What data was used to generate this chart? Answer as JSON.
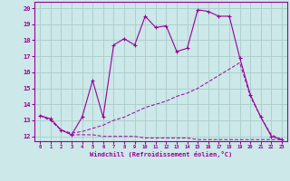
{
  "xlabel": "Windchill (Refroidissement éolien,°C)",
  "background_color": "#cce8e8",
  "grid_color": "#aacccc",
  "line_color": "#990099",
  "xlim": [
    -0.5,
    23.5
  ],
  "ylim": [
    11.7,
    20.4
  ],
  "yticks": [
    12,
    13,
    14,
    15,
    16,
    17,
    18,
    19,
    20
  ],
  "xticks": [
    0,
    1,
    2,
    3,
    4,
    5,
    6,
    7,
    8,
    9,
    10,
    11,
    12,
    13,
    14,
    15,
    16,
    17,
    18,
    19,
    20,
    21,
    22,
    23
  ],
  "line1_x": [
    0,
    1,
    2,
    3,
    4,
    5,
    6,
    7,
    8,
    9,
    10,
    11,
    12,
    13,
    14,
    15,
    16,
    17,
    18,
    19,
    20,
    21,
    22,
    23
  ],
  "line1_y": [
    13.3,
    13.1,
    12.4,
    12.1,
    13.2,
    15.5,
    13.2,
    17.7,
    18.1,
    17.7,
    19.5,
    18.8,
    18.9,
    17.3,
    17.5,
    19.9,
    19.8,
    19.5,
    19.5,
    16.9,
    14.6,
    13.2,
    12.0,
    11.8
  ],
  "line2_x": [
    0,
    1,
    2,
    3,
    4,
    5,
    6,
    7,
    8,
    9,
    10,
    11,
    12,
    13,
    14,
    15,
    16,
    17,
    18,
    19,
    20,
    21,
    22,
    23
  ],
  "line2_y": [
    13.3,
    13.0,
    12.4,
    12.2,
    12.3,
    12.5,
    12.7,
    13.0,
    13.2,
    13.5,
    13.8,
    14.0,
    14.2,
    14.5,
    14.7,
    15.0,
    15.4,
    15.8,
    16.2,
    16.6,
    14.5,
    13.2,
    12.1,
    11.8
  ],
  "line3_x": [
    0,
    1,
    2,
    3,
    4,
    5,
    6,
    7,
    8,
    9,
    10,
    11,
    12,
    13,
    14,
    15,
    16,
    17,
    18,
    19,
    20,
    21,
    22,
    23
  ],
  "line3_y": [
    13.3,
    13.0,
    12.4,
    12.1,
    12.1,
    12.1,
    12.0,
    12.0,
    12.0,
    12.0,
    11.9,
    11.9,
    11.9,
    11.9,
    11.9,
    11.8,
    11.8,
    11.8,
    11.8,
    11.8,
    11.8,
    11.8,
    11.8,
    11.8
  ]
}
